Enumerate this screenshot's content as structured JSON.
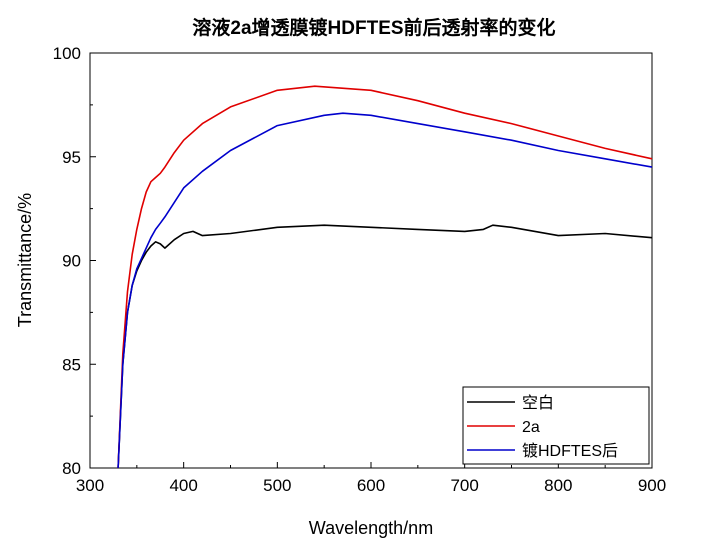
{
  "chart_data": {
    "type": "line",
    "title": "溶液2a增透膜镀HDFTES前后透射率的变化",
    "xlabel": "Wavelength/nm",
    "ylabel": "Transmittance/%",
    "xlim": [
      300,
      900
    ],
    "ylim": [
      80,
      100
    ],
    "x_ticks": [
      300,
      400,
      500,
      600,
      700,
      800,
      900
    ],
    "y_ticks": [
      80,
      85,
      90,
      95,
      100
    ],
    "grid": false,
    "legend_position": "bottom-right",
    "series": [
      {
        "name": "空白",
        "color": "#000000",
        "x": [
          330,
          335,
          340,
          345,
          350,
          355,
          360,
          365,
          370,
          375,
          380,
          390,
          400,
          410,
          420,
          450,
          500,
          550,
          600,
          650,
          700,
          720,
          730,
          750,
          800,
          850,
          900
        ],
        "y": [
          80,
          85.0,
          87.5,
          88.8,
          89.5,
          90.0,
          90.4,
          90.7,
          90.9,
          90.8,
          90.6,
          91.0,
          91.3,
          91.4,
          91.2,
          91.3,
          91.6,
          91.7,
          91.6,
          91.5,
          91.4,
          91.5,
          91.7,
          91.6,
          91.2,
          91.3,
          91.1
        ]
      },
      {
        "name": "2a",
        "color": "#e00000",
        "x": [
          330,
          335,
          340,
          345,
          350,
          355,
          360,
          365,
          370,
          375,
          380,
          390,
          400,
          420,
          450,
          500,
          540,
          600,
          650,
          700,
          750,
          800,
          850,
          900
        ],
        "y": [
          80,
          85.5,
          88.5,
          90.3,
          91.5,
          92.5,
          93.3,
          93.8,
          94.0,
          94.2,
          94.5,
          95.2,
          95.8,
          96.6,
          97.4,
          98.2,
          98.4,
          98.2,
          97.7,
          97.1,
          96.6,
          96.0,
          95.4,
          94.9
        ]
      },
      {
        "name": "镀HDFTES后",
        "color": "#0000cc",
        "x": [
          330,
          335,
          340,
          345,
          350,
          355,
          360,
          365,
          370,
          375,
          380,
          390,
          400,
          420,
          450,
          500,
          550,
          570,
          600,
          650,
          700,
          750,
          800,
          850,
          900
        ],
        "y": [
          80,
          85.0,
          87.5,
          88.8,
          89.6,
          90.1,
          90.6,
          91.1,
          91.5,
          91.8,
          92.1,
          92.8,
          93.5,
          94.3,
          95.3,
          96.5,
          97.0,
          97.1,
          97.0,
          96.6,
          96.2,
          95.8,
          95.3,
          94.9,
          94.5
        ]
      }
    ]
  }
}
